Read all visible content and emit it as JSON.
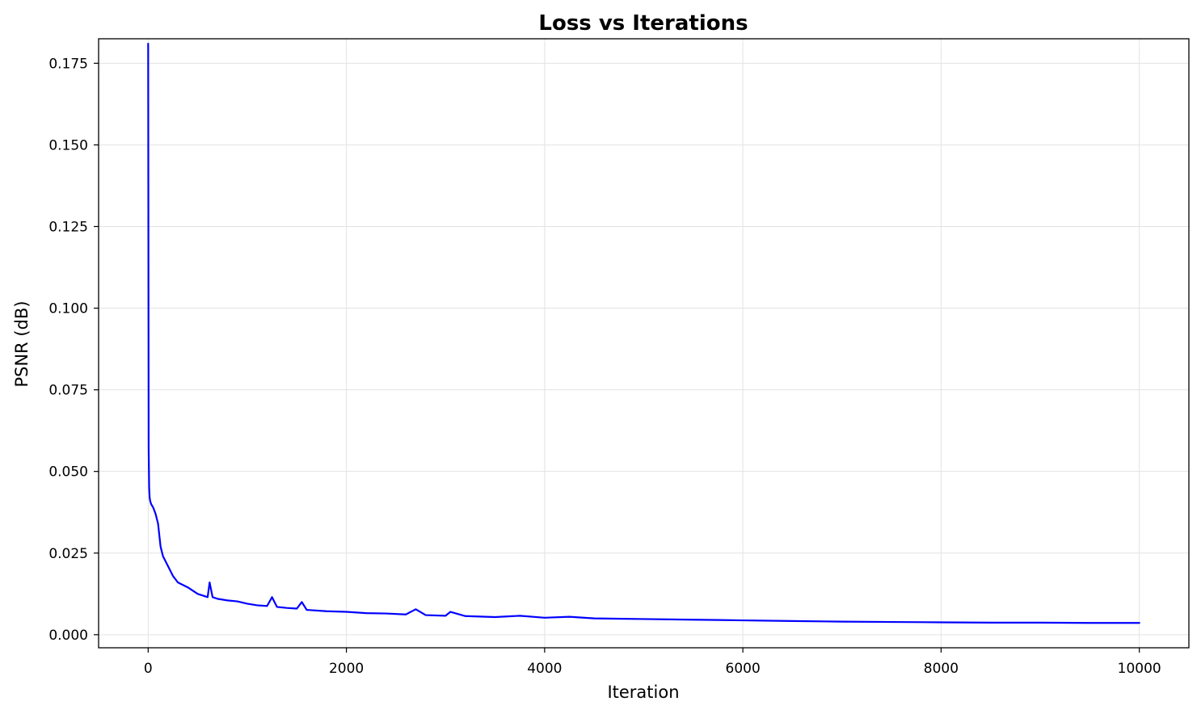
{
  "chart_data": {
    "type": "line",
    "title": "Loss vs Iterations",
    "xlabel": "Iteration",
    "ylabel": "PSNR (dB)",
    "xlim": [
      -500,
      10500
    ],
    "ylim": [
      -0.004,
      0.1825
    ],
    "x_ticks": [
      0,
      2000,
      4000,
      6000,
      8000,
      10000
    ],
    "x_tick_labels": [
      "0",
      "2000",
      "4000",
      "6000",
      "8000",
      "10000"
    ],
    "y_ticks": [
      0.0,
      0.025,
      0.05,
      0.075,
      0.1,
      0.125,
      0.15,
      0.175
    ],
    "y_tick_labels": [
      "0.000",
      "0.025",
      "0.050",
      "0.075",
      "0.100",
      "0.125",
      "0.150",
      "0.175"
    ],
    "grid": true,
    "line_color": "#0000ff",
    "series": [
      {
        "x": [
          0,
          5,
          10,
          15,
          20,
          30,
          50,
          75,
          100,
          125,
          150,
          200,
          250,
          300,
          400,
          500,
          600,
          620,
          650,
          700,
          800,
          900,
          1000,
          1100,
          1200,
          1250,
          1300,
          1400,
          1500,
          1550,
          1600,
          1800,
          2000,
          2200,
          2400,
          2600,
          2700,
          2800,
          3000,
          3050,
          3200,
          3500,
          3750,
          4000,
          4250,
          4500,
          5000,
          5500,
          6000,
          6500,
          7000,
          7500,
          8000,
          8500,
          9000,
          9500,
          10000
        ],
        "y": [
          0.181,
          0.057,
          0.045,
          0.042,
          0.041,
          0.04,
          0.039,
          0.037,
          0.034,
          0.027,
          0.024,
          0.021,
          0.018,
          0.016,
          0.0145,
          0.0125,
          0.0115,
          0.016,
          0.0115,
          0.011,
          0.0105,
          0.0102,
          0.0095,
          0.009,
          0.0088,
          0.0115,
          0.0085,
          0.0082,
          0.008,
          0.01,
          0.0076,
          0.0072,
          0.007,
          0.0066,
          0.0065,
          0.0062,
          0.0078,
          0.006,
          0.0058,
          0.007,
          0.0057,
          0.0054,
          0.0058,
          0.0052,
          0.0055,
          0.005,
          0.0048,
          0.0046,
          0.0044,
          0.0042,
          0.004,
          0.0039,
          0.0038,
          0.0037,
          0.0037,
          0.0036,
          0.0036
        ]
      }
    ]
  }
}
